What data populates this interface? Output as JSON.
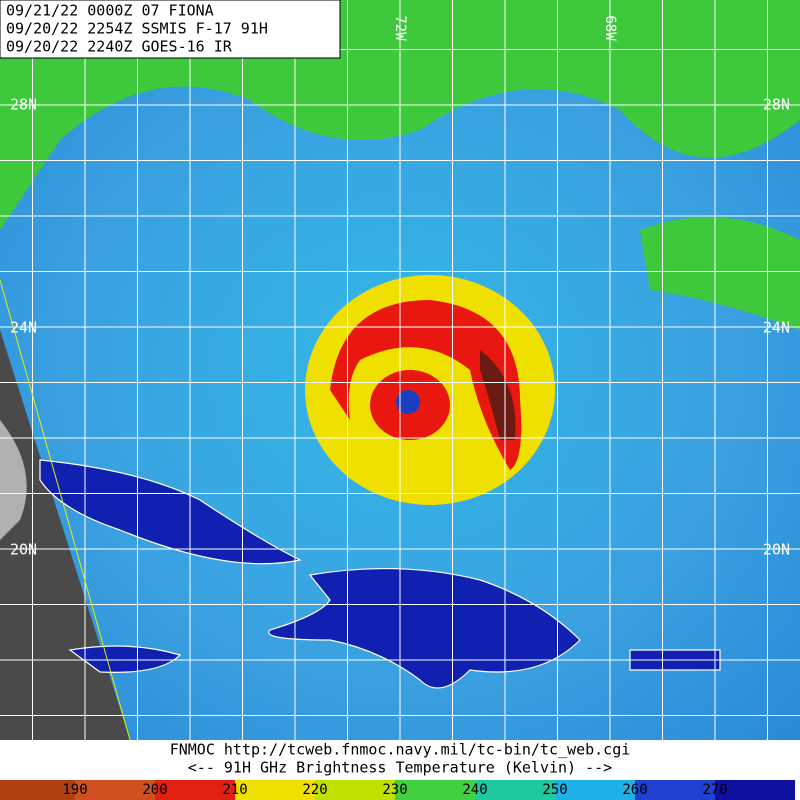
{
  "header": {
    "lines": [
      "09/21/22 0000Z  07 FIONA",
      "09/20/22 2254Z  SSMIS F-17 91H",
      "09/20/22 2240Z  GOES-16 IR"
    ]
  },
  "map": {
    "lat_labels": [
      "28N",
      "24N",
      "20N"
    ],
    "lon_labels": [
      "72W",
      "68W"
    ]
  },
  "footer": {
    "source": "FNMOC  http://tcweb.fnmoc.navy.mil/tc-bin/tc_web.cgi",
    "caption": "<--   91H GHz Brightness Temperature (Kelvin)  -->"
  },
  "colorbar": {
    "labels": [
      190,
      200,
      210,
      220,
      230,
      240,
      250,
      260,
      270
    ]
  }
}
